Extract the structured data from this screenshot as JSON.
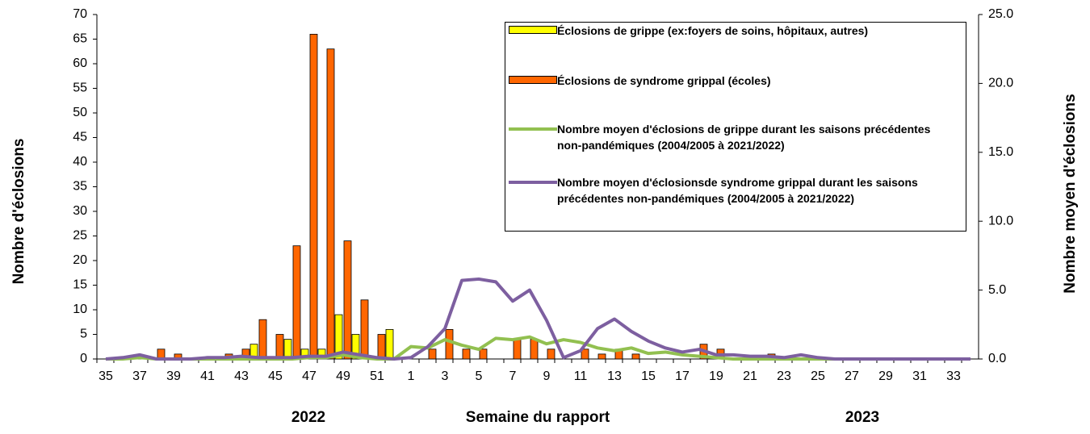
{
  "chart_data": {
    "type": "bar-line",
    "x_label": "Semaine du rapport",
    "y_label": "Nombre d'éclosions",
    "y2_label": "Nombre moyen d'éclosions",
    "year_labels": [
      "2022",
      "2023"
    ],
    "categories": [
      "35",
      null,
      "37",
      null,
      "39",
      null,
      "41",
      null,
      "43",
      null,
      "45",
      null,
      "47",
      null,
      "49",
      null,
      "51",
      null,
      "1",
      null,
      "3",
      null,
      "5",
      null,
      "7",
      null,
      "9",
      null,
      "11",
      null,
      "13",
      null,
      "15",
      null,
      "17",
      null,
      "19",
      null,
      "21",
      null,
      "23",
      null,
      "25",
      null,
      "27",
      null,
      "29",
      null,
      "31",
      null,
      "33",
      null
    ],
    "ylim": [
      0,
      70
    ],
    "yticks": [
      0,
      5,
      10,
      15,
      20,
      25,
      30,
      35,
      40,
      45,
      50,
      55,
      60,
      65,
      70
    ],
    "y2lim": [
      0,
      25
    ],
    "y2ticks": [
      {
        "value": 0,
        "label": "0.0"
      },
      {
        "value": 5,
        "label": "5.0"
      },
      {
        "value": 10,
        "label": "10.0"
      },
      {
        "value": 15,
        "label": "15.0"
      },
      {
        "value": 20,
        "label": "20.0"
      },
      {
        "value": 25,
        "label": "25.0"
      }
    ],
    "series": [
      {
        "name": "Éclosions de grippe (ex:foyers de soins, hôpitaux, autres)",
        "type": "bar",
        "color": "#ffff00",
        "values": [
          0,
          0,
          0,
          0,
          0,
          0,
          0,
          0,
          0,
          3,
          0,
          4,
          2,
          2,
          9,
          5,
          0,
          6,
          0,
          0,
          0,
          0,
          0,
          0,
          0,
          0,
          0,
          0,
          0,
          0,
          0,
          0,
          0,
          0,
          0,
          0,
          0,
          0,
          0,
          0,
          0,
          0,
          0,
          0,
          0,
          0,
          0,
          0,
          0,
          0,
          0,
          0
        ]
      },
      {
        "name": "Éclosions de syndrome grippal (écoles)",
        "type": "bar",
        "color": "#ff6600",
        "values": [
          0,
          0,
          0,
          2,
          1,
          0,
          0,
          1,
          2,
          8,
          5,
          23,
          66,
          63,
          24,
          12,
          5,
          0,
          0,
          2,
          6,
          2,
          2,
          0,
          4,
          4,
          2,
          0,
          2,
          1,
          2,
          1,
          0,
          0,
          0,
          3,
          2,
          0,
          0,
          1,
          0,
          0,
          0,
          0,
          0,
          0,
          0,
          0,
          0,
          0,
          0,
          0
        ]
      },
      {
        "name": "Nombre moyen d'éclosions de grippe durant les saisons précédentes non-pandémiques (2004/2005 à 2021/2022)",
        "type": "line",
        "axis": "y2",
        "color": "#92c050",
        "values": [
          0,
          0,
          0.1,
          0,
          0,
          0,
          0,
          0,
          0,
          0,
          0,
          0,
          0.1,
          0.1,
          0.3,
          0.1,
          0,
          0,
          0.9,
          0.8,
          1.4,
          1.0,
          0.7,
          1.5,
          1.4,
          1.6,
          1.1,
          1.4,
          1.2,
          0.8,
          0.6,
          0.8,
          0.4,
          0.5,
          0.3,
          0.2,
          0.1,
          0,
          0,
          0,
          0,
          0,
          0,
          0,
          0,
          0,
          0,
          0,
          0,
          0,
          0,
          0
        ]
      },
      {
        "name": "Nombre moyen d'éclosionsde syndrome grippal  durant les saisons précédentes non-pandémiques (2004/2005 à 2021/2022)",
        "type": "line",
        "axis": "y2",
        "color": "#7d5fa0",
        "values": [
          0,
          0.1,
          0.3,
          0,
          0,
          0,
          0.1,
          0.1,
          0.2,
          0.1,
          0.1,
          0.1,
          0.2,
          0.2,
          0.5,
          0.3,
          0.1,
          0,
          0.1,
          0.9,
          2.2,
          5.7,
          5.8,
          5.6,
          4.2,
          5.0,
          2.8,
          0.1,
          0.6,
          2.2,
          2.9,
          2.0,
          1.3,
          0.8,
          0.5,
          0.7,
          0.3,
          0.3,
          0.2,
          0.2,
          0.1,
          0.3,
          0.1,
          0,
          0,
          0,
          0,
          0,
          0,
          0,
          0,
          0
        ]
      }
    ]
  }
}
